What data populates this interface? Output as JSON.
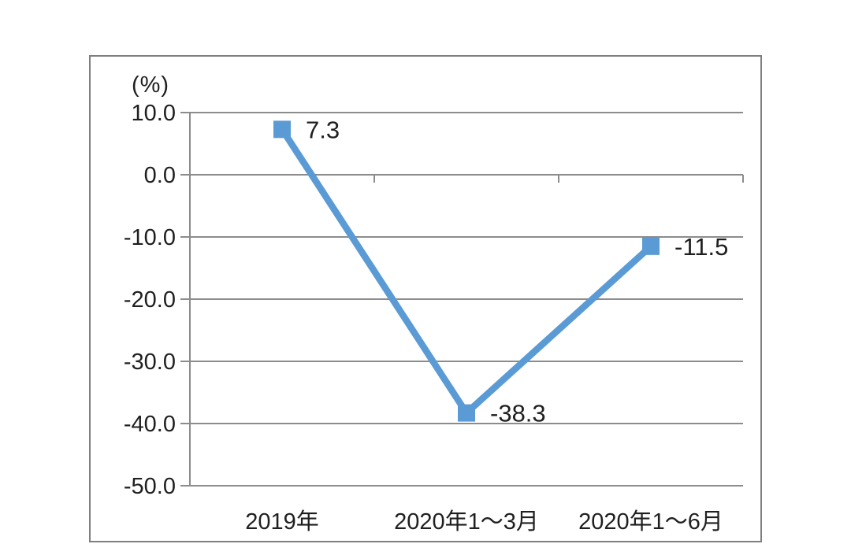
{
  "chart_data": {
    "type": "line",
    "title": "",
    "unit_label": "(%)",
    "categories": [
      "2019年",
      "2020年1～3月",
      "2020年1～6月"
    ],
    "values": [
      7.3,
      -38.3,
      -11.5
    ],
    "data_labels": [
      "7.3",
      "-38.3",
      "-11.5"
    ],
    "ylim": [
      -50,
      10
    ],
    "ytick_interval": 10,
    "ytick_labels": [
      "10.0",
      "0.0",
      "-10.0",
      "-20.0",
      "-30.0",
      "-40.0",
      "-50.0"
    ],
    "grid": true,
    "legend": "none",
    "marker": "square",
    "colors": {
      "line": "#5B9BD5",
      "marker": "#5B9BD5",
      "grid": "#8C8C8C",
      "axis": "#8C8C8C",
      "frame": "#7F7F7F",
      "text": "#1F1F1F"
    }
  }
}
